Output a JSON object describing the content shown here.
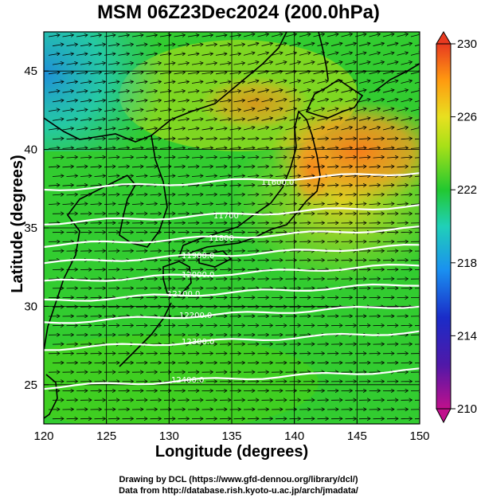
{
  "title": "MSM 06Z23Dec2024 (200.0hPa)",
  "map": {
    "xlabel": "Longitude (degrees)",
    "ylabel": "Latitude  (degrees)",
    "lon_range": [
      120,
      150
    ],
    "lat_range": [
      22.5,
      47.5
    ],
    "x_ticks": [
      "120",
      "125",
      "130",
      "135",
      "140",
      "145",
      "150"
    ],
    "y_ticks": [
      "25",
      "30",
      "35",
      "40",
      "45"
    ],
    "grid": true,
    "background_field": "temperature",
    "vectors": "wind arrows pointing east / east-north-east",
    "contour_color": "#ffffff"
  },
  "colorbar": {
    "range": [
      210,
      230
    ],
    "labels": [
      "230",
      "226",
      "222",
      "218",
      "214",
      "210"
    ],
    "colors": [
      "#c0108c",
      "#2020b0",
      "#1e90ff",
      "#20d0c8",
      "#22c830",
      "#88dd10",
      "#e6e020",
      "#ff9a10",
      "#e83a20"
    ]
  },
  "contours": [
    {
      "label": "11600.0"
    },
    {
      "label": "11700"
    },
    {
      "label": "11800"
    },
    {
      "label": "11900.0"
    },
    {
      "label": "12000.0"
    },
    {
      "label": "12100.0"
    },
    {
      "label": "12200.0"
    },
    {
      "label": "12300.0"
    },
    {
      "label": "12400.0"
    }
  ],
  "credits": {
    "line1": "Drawing by DCL (https://www.gfd-dennou.org/library/dcl/)",
    "line2": "Data from http://database.rish.kyoto-u.ac.jp/arch/jmadata/"
  }
}
